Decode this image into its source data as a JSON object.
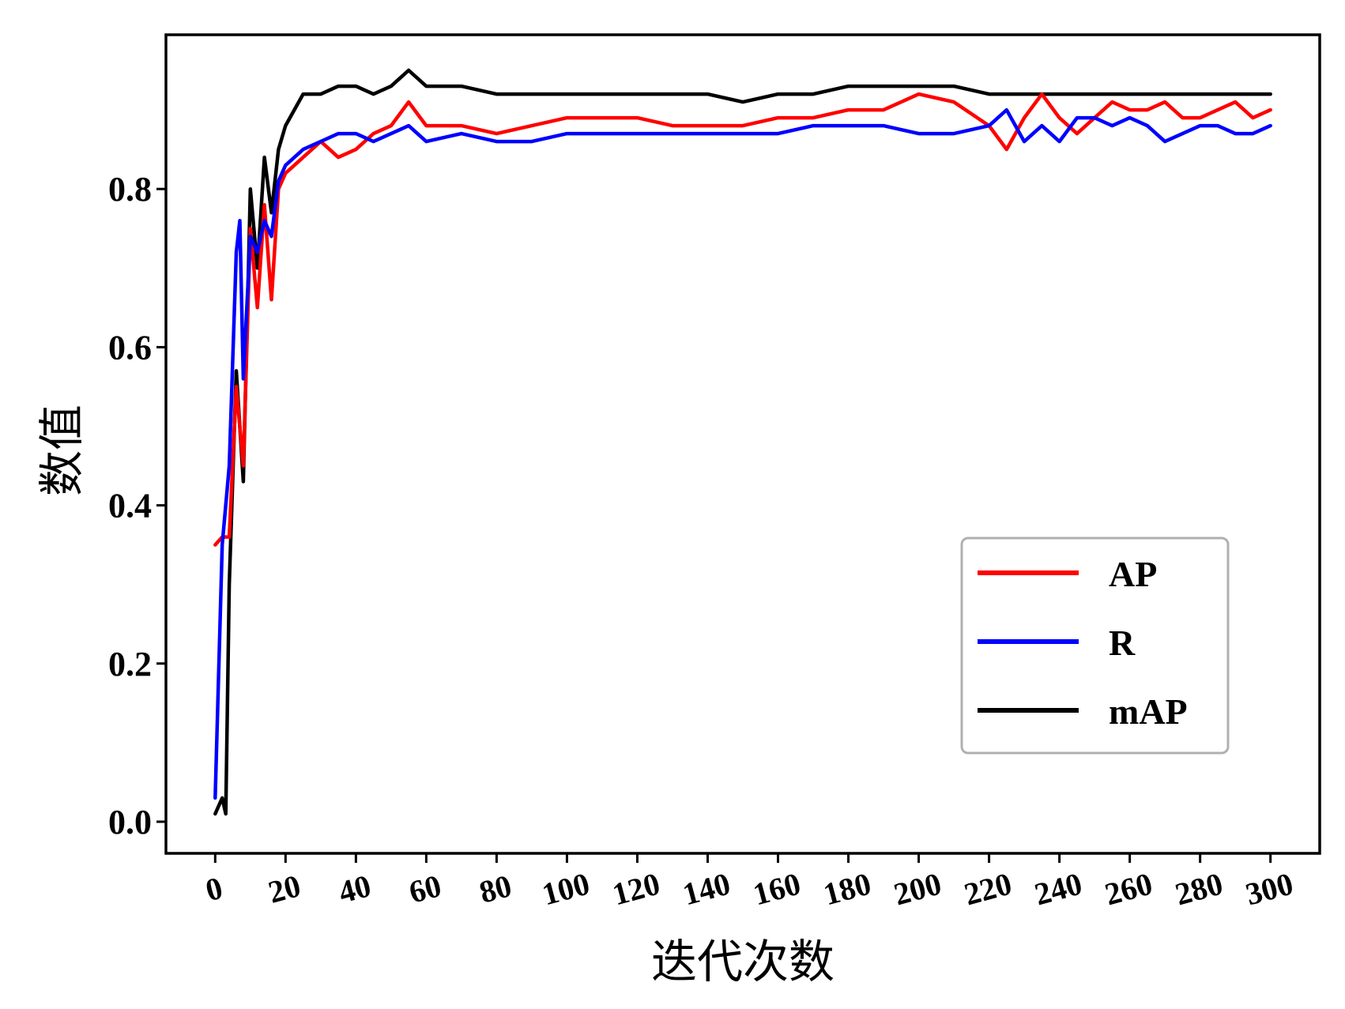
{
  "chart_data": {
    "type": "line",
    "title": "",
    "xlabel": "迭代次数",
    "ylabel": "数值",
    "xlim": [
      -14,
      314
    ],
    "ylim": [
      -0.04,
      0.995
    ],
    "xticks": [
      "0",
      "20",
      "40",
      "60",
      "80",
      "100",
      "120",
      "140",
      "160",
      "180",
      "200",
      "220",
      "240",
      "260",
      "280",
      "300"
    ],
    "yticks": [
      "0.0",
      "0.2",
      "0.4",
      "0.6",
      "0.8"
    ],
    "legend_position": "lower-right",
    "grid": false,
    "series": [
      {
        "name": "AP",
        "color": "#ff0000",
        "x": [
          0,
          2,
          4,
          6,
          8,
          10,
          12,
          14,
          16,
          18,
          20,
          25,
          30,
          35,
          40,
          45,
          50,
          55,
          60,
          70,
          80,
          90,
          100,
          110,
          120,
          130,
          140,
          150,
          160,
          170,
          180,
          190,
          200,
          210,
          220,
          225,
          230,
          235,
          240,
          245,
          250,
          255,
          260,
          265,
          270,
          275,
          280,
          285,
          290,
          295,
          300
        ],
        "y": [
          0.35,
          0.36,
          0.36,
          0.55,
          0.45,
          0.75,
          0.65,
          0.78,
          0.66,
          0.8,
          0.82,
          0.84,
          0.86,
          0.84,
          0.85,
          0.87,
          0.88,
          0.91,
          0.88,
          0.88,
          0.87,
          0.88,
          0.89,
          0.89,
          0.89,
          0.88,
          0.88,
          0.88,
          0.89,
          0.89,
          0.9,
          0.9,
          0.92,
          0.91,
          0.88,
          0.85,
          0.89,
          0.92,
          0.89,
          0.87,
          0.89,
          0.91,
          0.9,
          0.9,
          0.91,
          0.89,
          0.89,
          0.9,
          0.91,
          0.89,
          0.9
        ]
      },
      {
        "name": "R",
        "color": "#0000ff",
        "x": [
          0,
          2,
          4,
          6,
          7,
          8,
          10,
          12,
          14,
          16,
          18,
          20,
          25,
          30,
          35,
          40,
          45,
          50,
          55,
          60,
          70,
          80,
          90,
          100,
          110,
          120,
          130,
          140,
          150,
          160,
          170,
          180,
          190,
          200,
          210,
          220,
          225,
          230,
          235,
          240,
          245,
          250,
          255,
          260,
          265,
          270,
          275,
          280,
          285,
          290,
          295,
          300
        ],
        "y": [
          0.03,
          0.35,
          0.45,
          0.72,
          0.76,
          0.56,
          0.74,
          0.72,
          0.76,
          0.74,
          0.81,
          0.83,
          0.85,
          0.86,
          0.87,
          0.87,
          0.86,
          0.87,
          0.88,
          0.86,
          0.87,
          0.86,
          0.86,
          0.87,
          0.87,
          0.87,
          0.87,
          0.87,
          0.87,
          0.87,
          0.88,
          0.88,
          0.88,
          0.87,
          0.87,
          0.88,
          0.9,
          0.86,
          0.88,
          0.86,
          0.89,
          0.89,
          0.88,
          0.89,
          0.88,
          0.86,
          0.87,
          0.88,
          0.88,
          0.87,
          0.87,
          0.88
        ]
      },
      {
        "name": "mAP",
        "color": "#000000",
        "x": [
          0,
          2,
          3,
          4,
          6,
          8,
          10,
          12,
          14,
          16,
          18,
          20,
          25,
          30,
          35,
          40,
          45,
          50,
          55,
          60,
          70,
          80,
          90,
          100,
          110,
          120,
          130,
          140,
          150,
          160,
          170,
          180,
          190,
          200,
          210,
          220,
          230,
          240,
          250,
          260,
          270,
          280,
          290,
          300
        ],
        "y": [
          0.01,
          0.03,
          0.01,
          0.3,
          0.57,
          0.43,
          0.8,
          0.7,
          0.84,
          0.77,
          0.85,
          0.88,
          0.92,
          0.92,
          0.93,
          0.93,
          0.92,
          0.93,
          0.95,
          0.93,
          0.93,
          0.92,
          0.92,
          0.92,
          0.92,
          0.92,
          0.92,
          0.92,
          0.91,
          0.92,
          0.92,
          0.93,
          0.93,
          0.93,
          0.93,
          0.92,
          0.92,
          0.92,
          0.92,
          0.92,
          0.92,
          0.92,
          0.92,
          0.92
        ]
      }
    ]
  }
}
